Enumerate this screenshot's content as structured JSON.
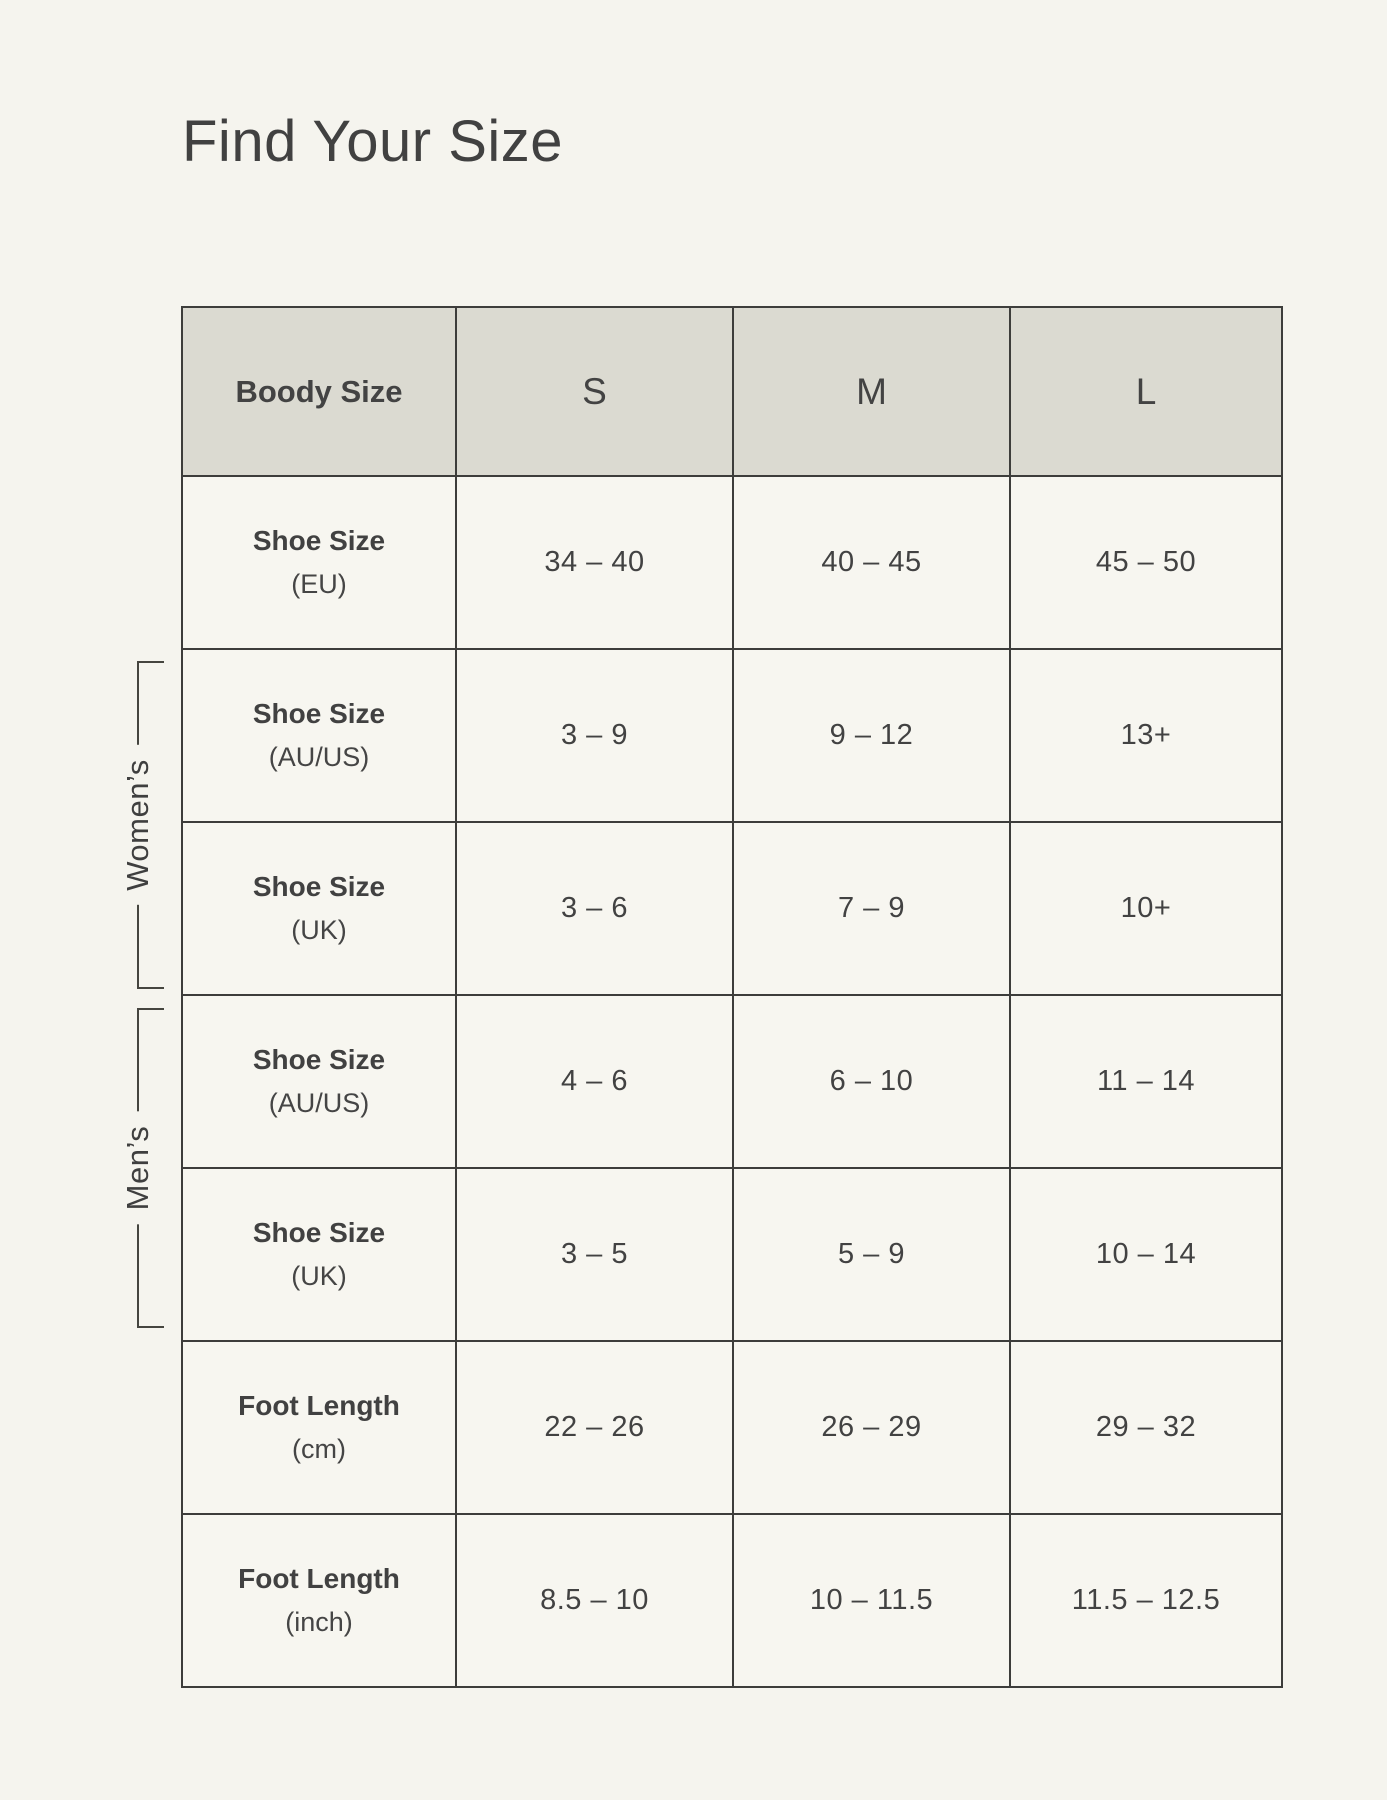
{
  "page": {
    "title": "Find Your Size"
  },
  "colors": {
    "background": "#F5F4EE",
    "header_fill": "#DBDAD1",
    "cell_fill": "#F7F6F0",
    "border": "#3D3D3B",
    "text": "#3F3F3F"
  },
  "groups": {
    "womens": "Women’s",
    "mens": "Men’s"
  },
  "chart_data": {
    "type": "table",
    "title": "Find Your Size",
    "columns": [
      "Boody Size",
      "S",
      "M",
      "L"
    ],
    "rows": [
      {
        "label": "Shoe Size",
        "sublabel": "(EU)",
        "s": "34 – 40",
        "m": "40 – 45",
        "l": "45 – 50"
      },
      {
        "label": "Shoe Size",
        "sublabel": "(AU/US)",
        "s": "3 – 9",
        "m": "9 – 12",
        "l": "13+"
      },
      {
        "label": "Shoe Size",
        "sublabel": "(UK)",
        "s": "3 – 6",
        "m": "7 – 9",
        "l": "10+"
      },
      {
        "label": "Shoe Size",
        "sublabel": "(AU/US)",
        "s": "4 – 6",
        "m": "6 – 10",
        "l": "11 – 14"
      },
      {
        "label": "Shoe Size",
        "sublabel": "(UK)",
        "s": "3 – 5",
        "m": "5 – 9",
        "l": "10 – 14"
      },
      {
        "label": "Foot Length",
        "sublabel": "(cm)",
        "s": "22 – 26",
        "m": "26 – 29",
        "l": "29 – 32"
      },
      {
        "label": "Foot Length",
        "sublabel": "(inch)",
        "s": "8.5 – 10",
        "m": "10 – 11.5",
        "l": "11.5 – 12.5"
      }
    ],
    "row_groups": [
      {
        "label": "Women’s",
        "rows": [
          1,
          2
        ]
      },
      {
        "label": "Men’s",
        "rows": [
          3,
          4
        ]
      }
    ]
  }
}
